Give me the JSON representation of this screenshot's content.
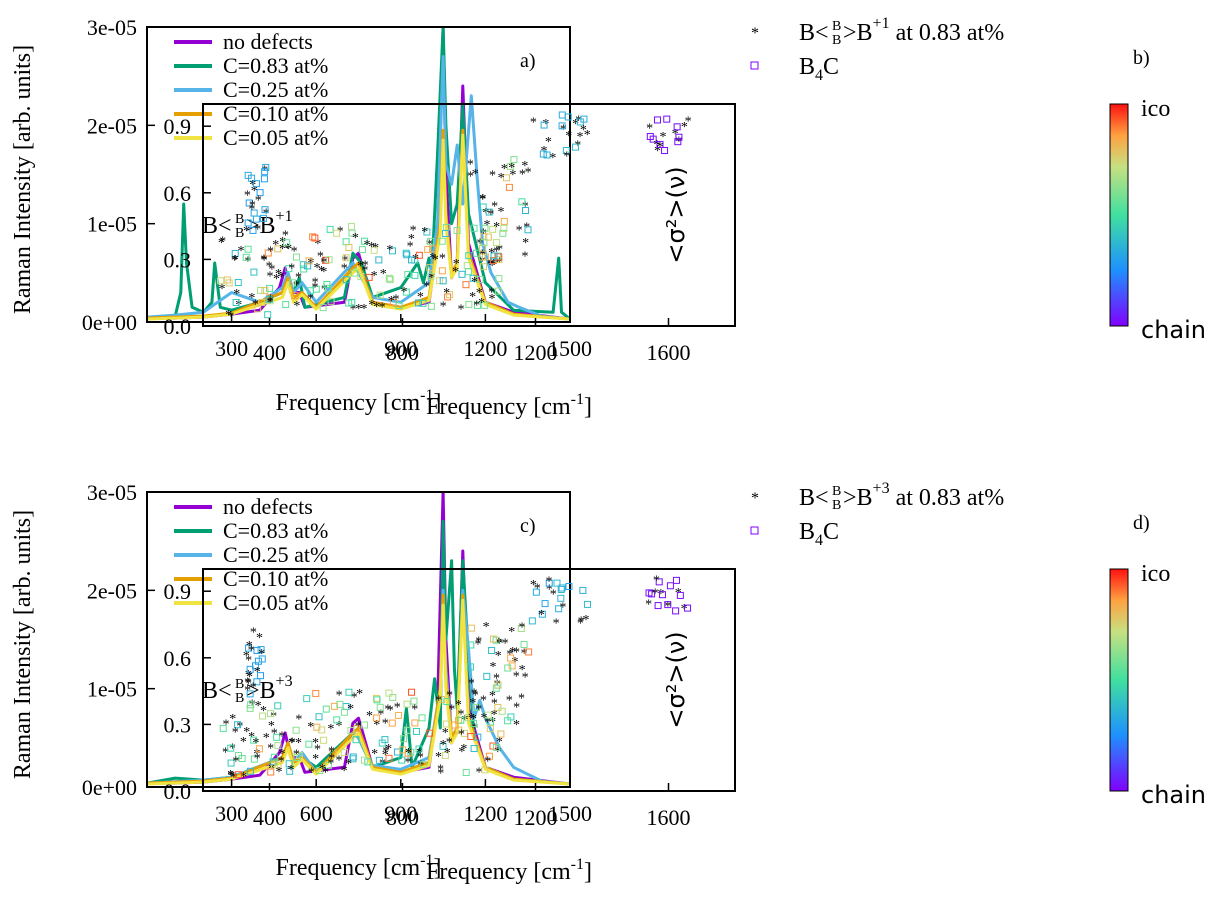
{
  "colors": {
    "no_defects": "#9400d3",
    "c083": "#009e73",
    "c025": "#56b4e9",
    "c010": "#e69f00",
    "c005": "#f0e442"
  },
  "chart_data": [
    {
      "id": "a",
      "type": "line",
      "panel_label": "a)",
      "annotation": {
        "base": "B<",
        "frac_top": "B",
        "frac_bottom": "B",
        "mid": ">B",
        "sup": "+1"
      },
      "xlabel": "Frequency [cm",
      "xlabel_sup": "-1",
      "xlabel_end": "]",
      "ylabel": "Raman Intensity [arb. units]",
      "xlim": [
        0,
        1500
      ],
      "ylim": [
        0,
        3e-05
      ],
      "xticks": [
        "300",
        "600",
        "900",
        "1200",
        "1500"
      ],
      "yticks": [
        "0e+00",
        "1e-05",
        "2e-05",
        "3e-05"
      ],
      "legend": [
        "no defects",
        "C=0.83 at%",
        "C=0.25 at%",
        "C=0.10 at%",
        "C=0.05 at%"
      ],
      "series": [
        {
          "name": "no defects",
          "color_key": "no_defects",
          "x": [
            0,
            100,
            200,
            300,
            400,
            470,
            490,
            510,
            540,
            560,
            700,
            730,
            750,
            800,
            900,
            1000,
            1030,
            1050,
            1060,
            1080,
            1100,
            1120,
            1140,
            1200,
            1300,
            1500
          ],
          "y": [
            4e-07,
            4e-07,
            5e-07,
            8e-07,
            1.2e-06,
            3.5e-06,
            5.5e-06,
            3e-06,
            3e-06,
            1.5e-06,
            2e-06,
            6.5e-06,
            7e-06,
            2e-06,
            1.5e-06,
            2e-06,
            8e-06,
            3e-05,
            1.5e-05,
            4.5e-06,
            6e-06,
            2.4e-05,
            8e-06,
            2e-06,
            1e-06,
            3e-07
          ]
        },
        {
          "name": "C=0.83 at%",
          "color_key": "c083",
          "x": [
            0,
            100,
            120,
            130,
            140,
            160,
            200,
            230,
            240,
            260,
            300,
            400,
            480,
            500,
            520,
            540,
            560,
            700,
            730,
            760,
            800,
            900,
            960,
            980,
            1000,
            1010,
            1030,
            1050,
            1060,
            1080,
            1100,
            1120,
            1140,
            1200,
            1300,
            1440,
            1460,
            1470,
            1500
          ],
          "y": [
            3e-07,
            6e-07,
            3e-06,
            1.2e-05,
            6e-06,
            1.5e-06,
            1e-06,
            2e-06,
            6e-06,
            1.5e-06,
            1.2e-06,
            2e-06,
            3e-06,
            4.5e-06,
            3e-06,
            4.5e-06,
            1.5e-06,
            2.5e-06,
            7e-06,
            6e-06,
            2.5e-06,
            3.5e-06,
            6e-06,
            4e-06,
            6.5e-06,
            5e-06,
            1.7e-05,
            3e-05,
            2e-05,
            1e-05,
            1.2e-05,
            2.2e-05,
            1.1e-05,
            4e-06,
            1.2e-06,
            1e-06,
            6.5e-06,
            1e-06,
            3e-07
          ]
        },
        {
          "name": "C=0.25 at%",
          "color_key": "c025",
          "x": [
            0,
            100,
            200,
            300,
            400,
            480,
            500,
            520,
            550,
            600,
            730,
            750,
            800,
            900,
            950,
            1000,
            1030,
            1050,
            1060,
            1080,
            1100,
            1120,
            1150,
            1170,
            1190,
            1220,
            1280,
            1320,
            1400,
            1500
          ],
          "y": [
            5e-07,
            7e-07,
            1e-06,
            3e-06,
            2e-06,
            3.5e-06,
            5e-06,
            3e-06,
            4e-06,
            2e-06,
            6e-06,
            5e-06,
            2.5e-06,
            2e-06,
            3e-06,
            4e-06,
            1e-05,
            2.7e-05,
            1.6e-05,
            1.4e-05,
            1.8e-05,
            1.2e-05,
            2.3e-05,
            1.5e-05,
            8e-06,
            5e-06,
            2e-06,
            1.5e-06,
            6e-07,
            3e-07
          ]
        },
        {
          "name": "C=0.10 at%",
          "color_key": "c010",
          "x": [
            0,
            200,
            300,
            480,
            500,
            520,
            550,
            600,
            730,
            750,
            800,
            900,
            1000,
            1040,
            1050,
            1060,
            1080,
            1100,
            1120,
            1140,
            1200,
            1300,
            1500
          ],
          "y": [
            4e-07,
            6e-07,
            9e-07,
            3e-06,
            4.5e-06,
            2.5e-06,
            3e-06,
            1.5e-06,
            5.5e-06,
            6e-06,
            2e-06,
            1.5e-06,
            2.5e-06,
            1e-05,
            1.95e-05,
            1.1e-05,
            5e-06,
            6e-06,
            1.95e-05,
            7e-06,
            2e-06,
            8e-07,
            3e-07
          ]
        },
        {
          "name": "C=0.05 at%",
          "color_key": "c005",
          "x": [
            0,
            200,
            300,
            480,
            500,
            520,
            550,
            600,
            730,
            750,
            800,
            900,
            1000,
            1040,
            1050,
            1060,
            1080,
            1100,
            1120,
            1140,
            1200,
            1300,
            1500
          ],
          "y": [
            3e-07,
            5e-07,
            8e-07,
            2.5e-06,
            4e-06,
            2e-06,
            2.8e-06,
            1.3e-06,
            5e-06,
            5.5e-06,
            1.8e-06,
            1.3e-06,
            2.2e-06,
            9e-06,
            1.85e-05,
            1e-05,
            4.5e-06,
            5.5e-06,
            1.9e-05,
            6.5e-06,
            1.8e-06,
            7e-07,
            3e-07
          ]
        }
      ]
    },
    {
      "id": "b",
      "type": "scatter",
      "panel_label": "b)",
      "legend_star": {
        "base": "B<",
        "frac_top": "B",
        "frac_bottom": "B",
        "mid": ">B",
        "sup": "+1",
        "tail": " at 0.83 at%"
      },
      "legend_square": {
        "base": "B",
        "sub": "4",
        "tail": "C"
      },
      "xlabel": "Frequency [cm",
      "xlabel_sup": "-1",
      "xlabel_end": "]",
      "ylabel": "<σ²>(ν)",
      "xlim": [
        200,
        1800
      ],
      "ylim": [
        0,
        1
      ],
      "xticks": [
        "400",
        "800",
        "1200",
        "1600"
      ],
      "yticks": [
        "0.0",
        "0.3",
        "0.6",
        "0.9"
      ],
      "colorbar": {
        "top": "ico",
        "bottom": "chain"
      },
      "clusters": [
        {
          "x": [
            330,
            390
          ],
          "y": [
            0.42,
            0.73
          ],
          "n": 24
        },
        {
          "x": [
            250,
            420
          ],
          "y": [
            0.05,
            0.4
          ],
          "n": 40
        },
        {
          "x": [
            400,
            1100
          ],
          "y": [
            0.08,
            0.45
          ],
          "n": 170
        },
        {
          "x": [
            1000,
            1180
          ],
          "y": [
            0.3,
            0.75
          ],
          "n": 50
        },
        {
          "x": [
            1180,
            1360
          ],
          "y": [
            0.76,
            0.96
          ],
          "n": 24
        },
        {
          "x": [
            1540,
            1660
          ],
          "y": [
            0.78,
            0.96
          ],
          "n": 18
        }
      ]
    },
    {
      "id": "c",
      "type": "line",
      "panel_label": "c)",
      "annotation": {
        "base": "B<",
        "frac_top": "B",
        "frac_bottom": "B",
        "mid": ">B",
        "sup": "+3"
      },
      "xlabel": "Frequency [cm",
      "xlabel_sup": "-1",
      "xlabel_end": "]",
      "ylabel": "Raman Intensity [arb. units]",
      "xlim": [
        0,
        1500
      ],
      "ylim": [
        0,
        3e-05
      ],
      "xticks": [
        "300",
        "600",
        "900",
        "1200",
        "1500"
      ],
      "yticks": [
        "0e+00",
        "1e-05",
        "2e-05",
        "3e-05"
      ],
      "legend": [
        "no defects",
        "C=0.83 at%",
        "C=0.25 at%",
        "C=0.10 at%",
        "C=0.05 at%"
      ],
      "series": [
        {
          "name": "no defects",
          "color_key": "no_defects",
          "x": [
            0,
            100,
            200,
            300,
            400,
            470,
            490,
            510,
            540,
            560,
            700,
            730,
            750,
            800,
            900,
            1000,
            1030,
            1050,
            1060,
            1080,
            1100,
            1120,
            1140,
            1200,
            1300,
            1500
          ],
          "y": [
            4e-07,
            4e-07,
            5e-07,
            8e-07,
            1.2e-06,
            3.5e-06,
            5.5e-06,
            3e-06,
            3e-06,
            1.5e-06,
            2e-06,
            6.5e-06,
            7e-06,
            2e-06,
            1.5e-06,
            2e-06,
            8e-06,
            3e-05,
            1.5e-05,
            4.5e-06,
            6e-06,
            2.4e-05,
            8e-06,
            2e-06,
            1e-06,
            3e-07
          ]
        },
        {
          "name": "C=0.83 at%",
          "color_key": "c083",
          "x": [
            0,
            100,
            200,
            300,
            480,
            500,
            520,
            550,
            600,
            730,
            750,
            800,
            900,
            920,
            940,
            1000,
            1020,
            1040,
            1050,
            1060,
            1080,
            1090,
            1100,
            1120,
            1140,
            1160,
            1200,
            1300,
            1500
          ],
          "y": [
            4e-07,
            9e-07,
            7e-07,
            1e-06,
            3e-06,
            4e-06,
            2.5e-06,
            3e-06,
            2e-06,
            5.5e-06,
            5e-06,
            2e-06,
            3e-06,
            8e-06,
            2e-06,
            6e-06,
            1.1e-05,
            6e-06,
            2.7e-05,
            1.5e-05,
            2.3e-05,
            1.2e-05,
            8e-06,
            2.3e-05,
            1.3e-05,
            5e-06,
            2e-06,
            8e-07,
            3e-07
          ]
        },
        {
          "name": "C=0.25 at%",
          "color_key": "c025",
          "x": [
            0,
            200,
            300,
            480,
            500,
            520,
            550,
            600,
            730,
            750,
            800,
            900,
            1000,
            1040,
            1050,
            1060,
            1080,
            1100,
            1120,
            1140,
            1160,
            1180,
            1200,
            1250,
            1300,
            1400,
            1500
          ],
          "y": [
            4e-07,
            7e-07,
            1e-06,
            3e-06,
            4.5e-06,
            2.5e-06,
            3.5e-06,
            1.5e-06,
            5.5e-06,
            5e-06,
            2.2e-06,
            1.8e-06,
            3e-06,
            1e-05,
            2e-05,
            1.2e-05,
            5e-06,
            6e-06,
            2e-05,
            1.4e-05,
            7e-06,
            8.8e-06,
            7e-06,
            4e-06,
            2e-06,
            6e-07,
            3e-07
          ]
        },
        {
          "name": "C=0.10 at%",
          "color_key": "c010",
          "x": [
            0,
            200,
            300,
            480,
            500,
            520,
            550,
            600,
            730,
            750,
            800,
            900,
            1000,
            1040,
            1050,
            1060,
            1080,
            1100,
            1120,
            1140,
            1200,
            1300,
            1500
          ],
          "y": [
            4e-07,
            6e-07,
            9e-07,
            3e-06,
            4.5e-06,
            2.5e-06,
            3e-06,
            1.5e-06,
            5.5e-06,
            6e-06,
            2e-06,
            1.5e-06,
            2.5e-06,
            1e-05,
            1.95e-05,
            1.1e-05,
            5e-06,
            6e-06,
            1.95e-05,
            7e-06,
            2e-06,
            8e-07,
            3e-07
          ]
        },
        {
          "name": "C=0.05 at%",
          "color_key": "c005",
          "x": [
            0,
            200,
            300,
            480,
            500,
            520,
            550,
            600,
            730,
            750,
            800,
            900,
            1000,
            1040,
            1050,
            1060,
            1080,
            1100,
            1120,
            1140,
            1200,
            1300,
            1500
          ],
          "y": [
            3e-07,
            5e-07,
            8e-07,
            2.5e-06,
            4e-06,
            2e-06,
            2.8e-06,
            1.3e-06,
            5e-06,
            5.5e-06,
            1.8e-06,
            1.3e-06,
            2.2e-06,
            9e-06,
            1.85e-05,
            1e-05,
            4.5e-06,
            5.5e-06,
            1.9e-05,
            6.5e-06,
            1.8e-06,
            7e-07,
            3e-07
          ]
        }
      ]
    },
    {
      "id": "d",
      "type": "scatter",
      "panel_label": "d)",
      "legend_star": {
        "base": "B<",
        "frac_top": "B",
        "frac_bottom": "B",
        "mid": ">B",
        "sup": "+3",
        "tail": " at 0.83 at%"
      },
      "legend_square": {
        "base": "B",
        "sub": "4",
        "tail": "C"
      },
      "xlabel": "Frequency [cm",
      "xlabel_sup": "-1",
      "xlabel_end": "]",
      "ylabel": "<σ²>(ν)",
      "xlim": [
        200,
        1800
      ],
      "ylim": [
        0,
        1
      ],
      "xticks": [
        "400",
        "800",
        "1200",
        "1600"
      ],
      "yticks": [
        "0.0",
        "0.3",
        "0.6",
        "0.9"
      ],
      "colorbar": {
        "top": "ico",
        "bottom": "chain"
      },
      "clusters": [
        {
          "x": [
            330,
            390
          ],
          "y": [
            0.42,
            0.73
          ],
          "n": 24
        },
        {
          "x": [
            250,
            420
          ],
          "y": [
            0.05,
            0.4
          ],
          "n": 40
        },
        {
          "x": [
            400,
            1100
          ],
          "y": [
            0.08,
            0.45
          ],
          "n": 170
        },
        {
          "x": [
            1000,
            1180
          ],
          "y": [
            0.3,
            0.75
          ],
          "n": 50
        },
        {
          "x": [
            1180,
            1360
          ],
          "y": [
            0.76,
            0.96
          ],
          "n": 24
        },
        {
          "x": [
            1540,
            1660
          ],
          "y": [
            0.78,
            0.96
          ],
          "n": 18
        }
      ]
    }
  ]
}
